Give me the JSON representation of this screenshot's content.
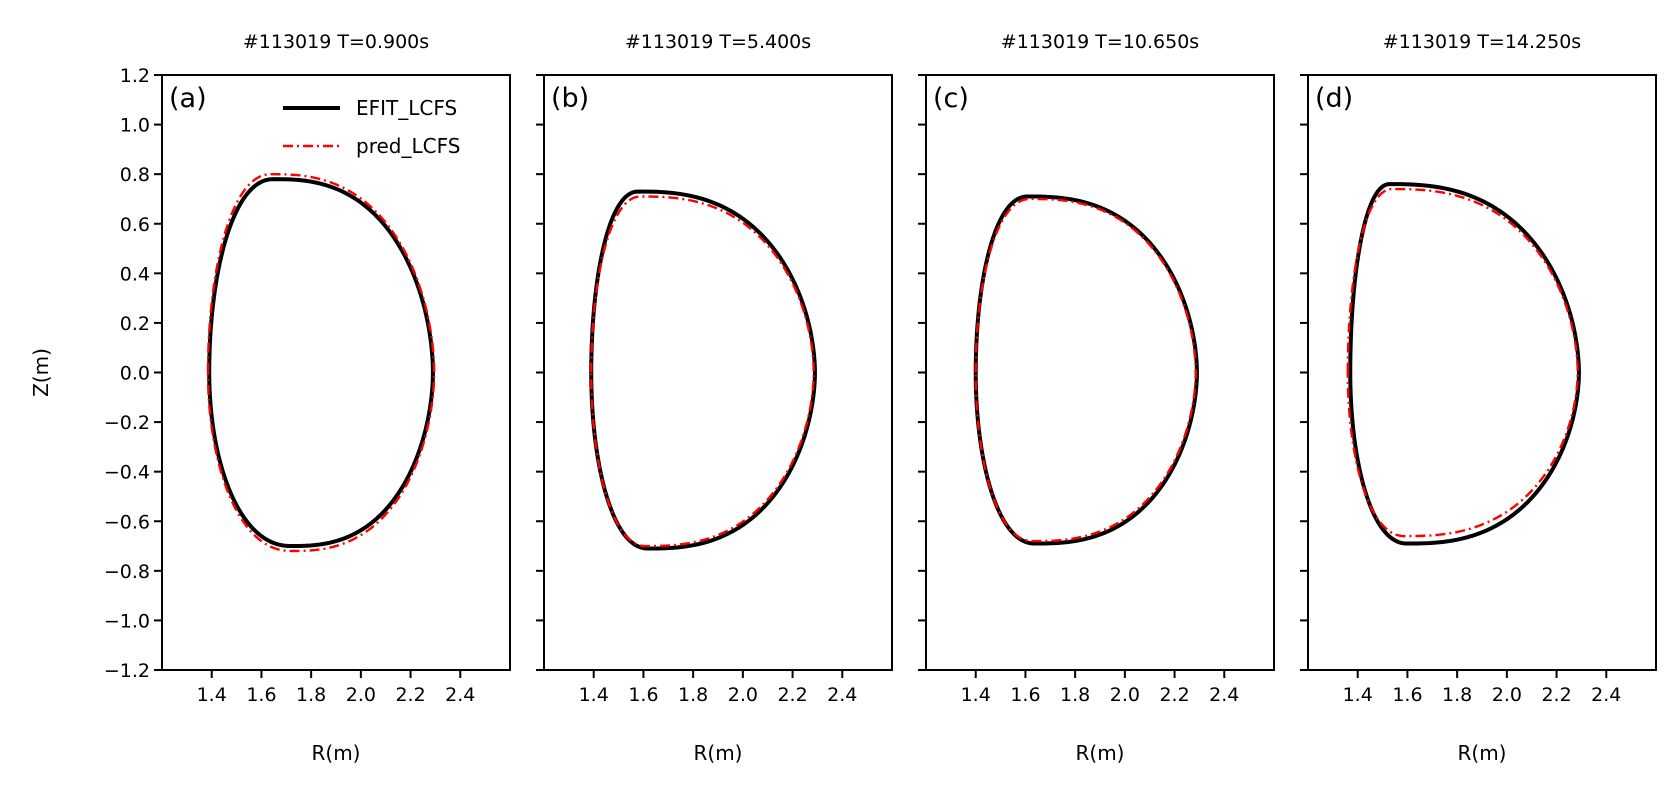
{
  "chart_data": [
    {
      "type": "line",
      "title": "#113019 T=0.900s",
      "tag": "(a)",
      "xlabel": "R(m)",
      "ylabel": "Z(m)",
      "xlim": [
        1.2,
        2.6
      ],
      "ylim": [
        -1.2,
        1.2
      ],
      "xticks": [
        "1.4",
        "1.6",
        "1.8",
        "2.0",
        "2.2",
        "2.4"
      ],
      "yticks": [
        "−1.2",
        "−1.0",
        "−0.8",
        "−0.6",
        "−0.4",
        "−0.2",
        "0.0",
        "0.2",
        "0.4",
        "0.6",
        "0.8",
        "1.0",
        "1.2"
      ],
      "grid": false,
      "legend": "top-right",
      "series": [
        {
          "name": "EFIT_LCFS",
          "color": "#000000",
          "style": "solid",
          "r_in": 1.39,
          "r_out": 2.29,
          "r_top": 1.65,
          "z_top": 0.78,
          "r_bot": 1.72,
          "z_bot": -0.7
        },
        {
          "name": "pred_LCFS",
          "color": "#ff0000",
          "style": "dashdot",
          "r_in": 1.385,
          "r_out": 2.295,
          "r_top": 1.64,
          "z_top": 0.8,
          "r_bot": 1.72,
          "z_bot": -0.72
        }
      ]
    },
    {
      "type": "line",
      "title": "#113019 T=5.400s",
      "tag": "(b)",
      "xlabel": "R(m)",
      "xlim": [
        1.2,
        2.6
      ],
      "ylim": [
        -1.2,
        1.2
      ],
      "xticks": [
        "1.4",
        "1.6",
        "1.8",
        "2.0",
        "2.2",
        "2.4"
      ],
      "grid": false,
      "series": [
        {
          "name": "EFIT_LCFS",
          "color": "#000000",
          "style": "solid",
          "r_in": 1.39,
          "r_out": 2.29,
          "r_top": 1.58,
          "z_top": 0.73,
          "r_bot": 1.62,
          "z_bot": -0.71
        },
        {
          "name": "pred_LCFS",
          "color": "#ff0000",
          "style": "dashdot",
          "r_in": 1.39,
          "r_out": 2.285,
          "r_top": 1.59,
          "z_top": 0.71,
          "r_bot": 1.61,
          "z_bot": -0.7
        }
      ]
    },
    {
      "type": "line",
      "title": "#113019 T=10.650s",
      "tag": "(c)",
      "xlabel": "R(m)",
      "xlim": [
        1.2,
        2.6
      ],
      "ylim": [
        -1.2,
        1.2
      ],
      "xticks": [
        "1.4",
        "1.6",
        "1.8",
        "2.0",
        "2.2",
        "2.4"
      ],
      "grid": false,
      "series": [
        {
          "name": "EFIT_LCFS",
          "color": "#000000",
          "style": "solid",
          "r_in": 1.4,
          "r_out": 2.29,
          "r_top": 1.61,
          "z_top": 0.71,
          "r_bot": 1.64,
          "z_bot": -0.69
        },
        {
          "name": "pred_LCFS",
          "color": "#ff0000",
          "style": "dashdot",
          "r_in": 1.4,
          "r_out": 2.285,
          "r_top": 1.62,
          "z_top": 0.7,
          "r_bot": 1.63,
          "z_bot": -0.68
        }
      ]
    },
    {
      "type": "line",
      "title": "#113019 T=14.250s",
      "tag": "(d)",
      "xlabel": "R(m)",
      "xlim": [
        1.2,
        2.6
      ],
      "ylim": [
        -1.2,
        1.2
      ],
      "xticks": [
        "1.4",
        "1.6",
        "1.8",
        "2.0",
        "2.2",
        "2.4"
      ],
      "grid": false,
      "series": [
        {
          "name": "EFIT_LCFS",
          "color": "#000000",
          "style": "solid",
          "r_in": 1.37,
          "r_out": 2.29,
          "r_top": 1.53,
          "z_top": 0.76,
          "r_bot": 1.6,
          "z_bot": -0.69
        },
        {
          "name": "pred_LCFS",
          "color": "#ff0000",
          "style": "dashdot",
          "r_in": 1.36,
          "r_out": 2.285,
          "r_top": 1.54,
          "z_top": 0.74,
          "r_bot": 1.59,
          "z_bot": -0.66
        }
      ]
    }
  ]
}
